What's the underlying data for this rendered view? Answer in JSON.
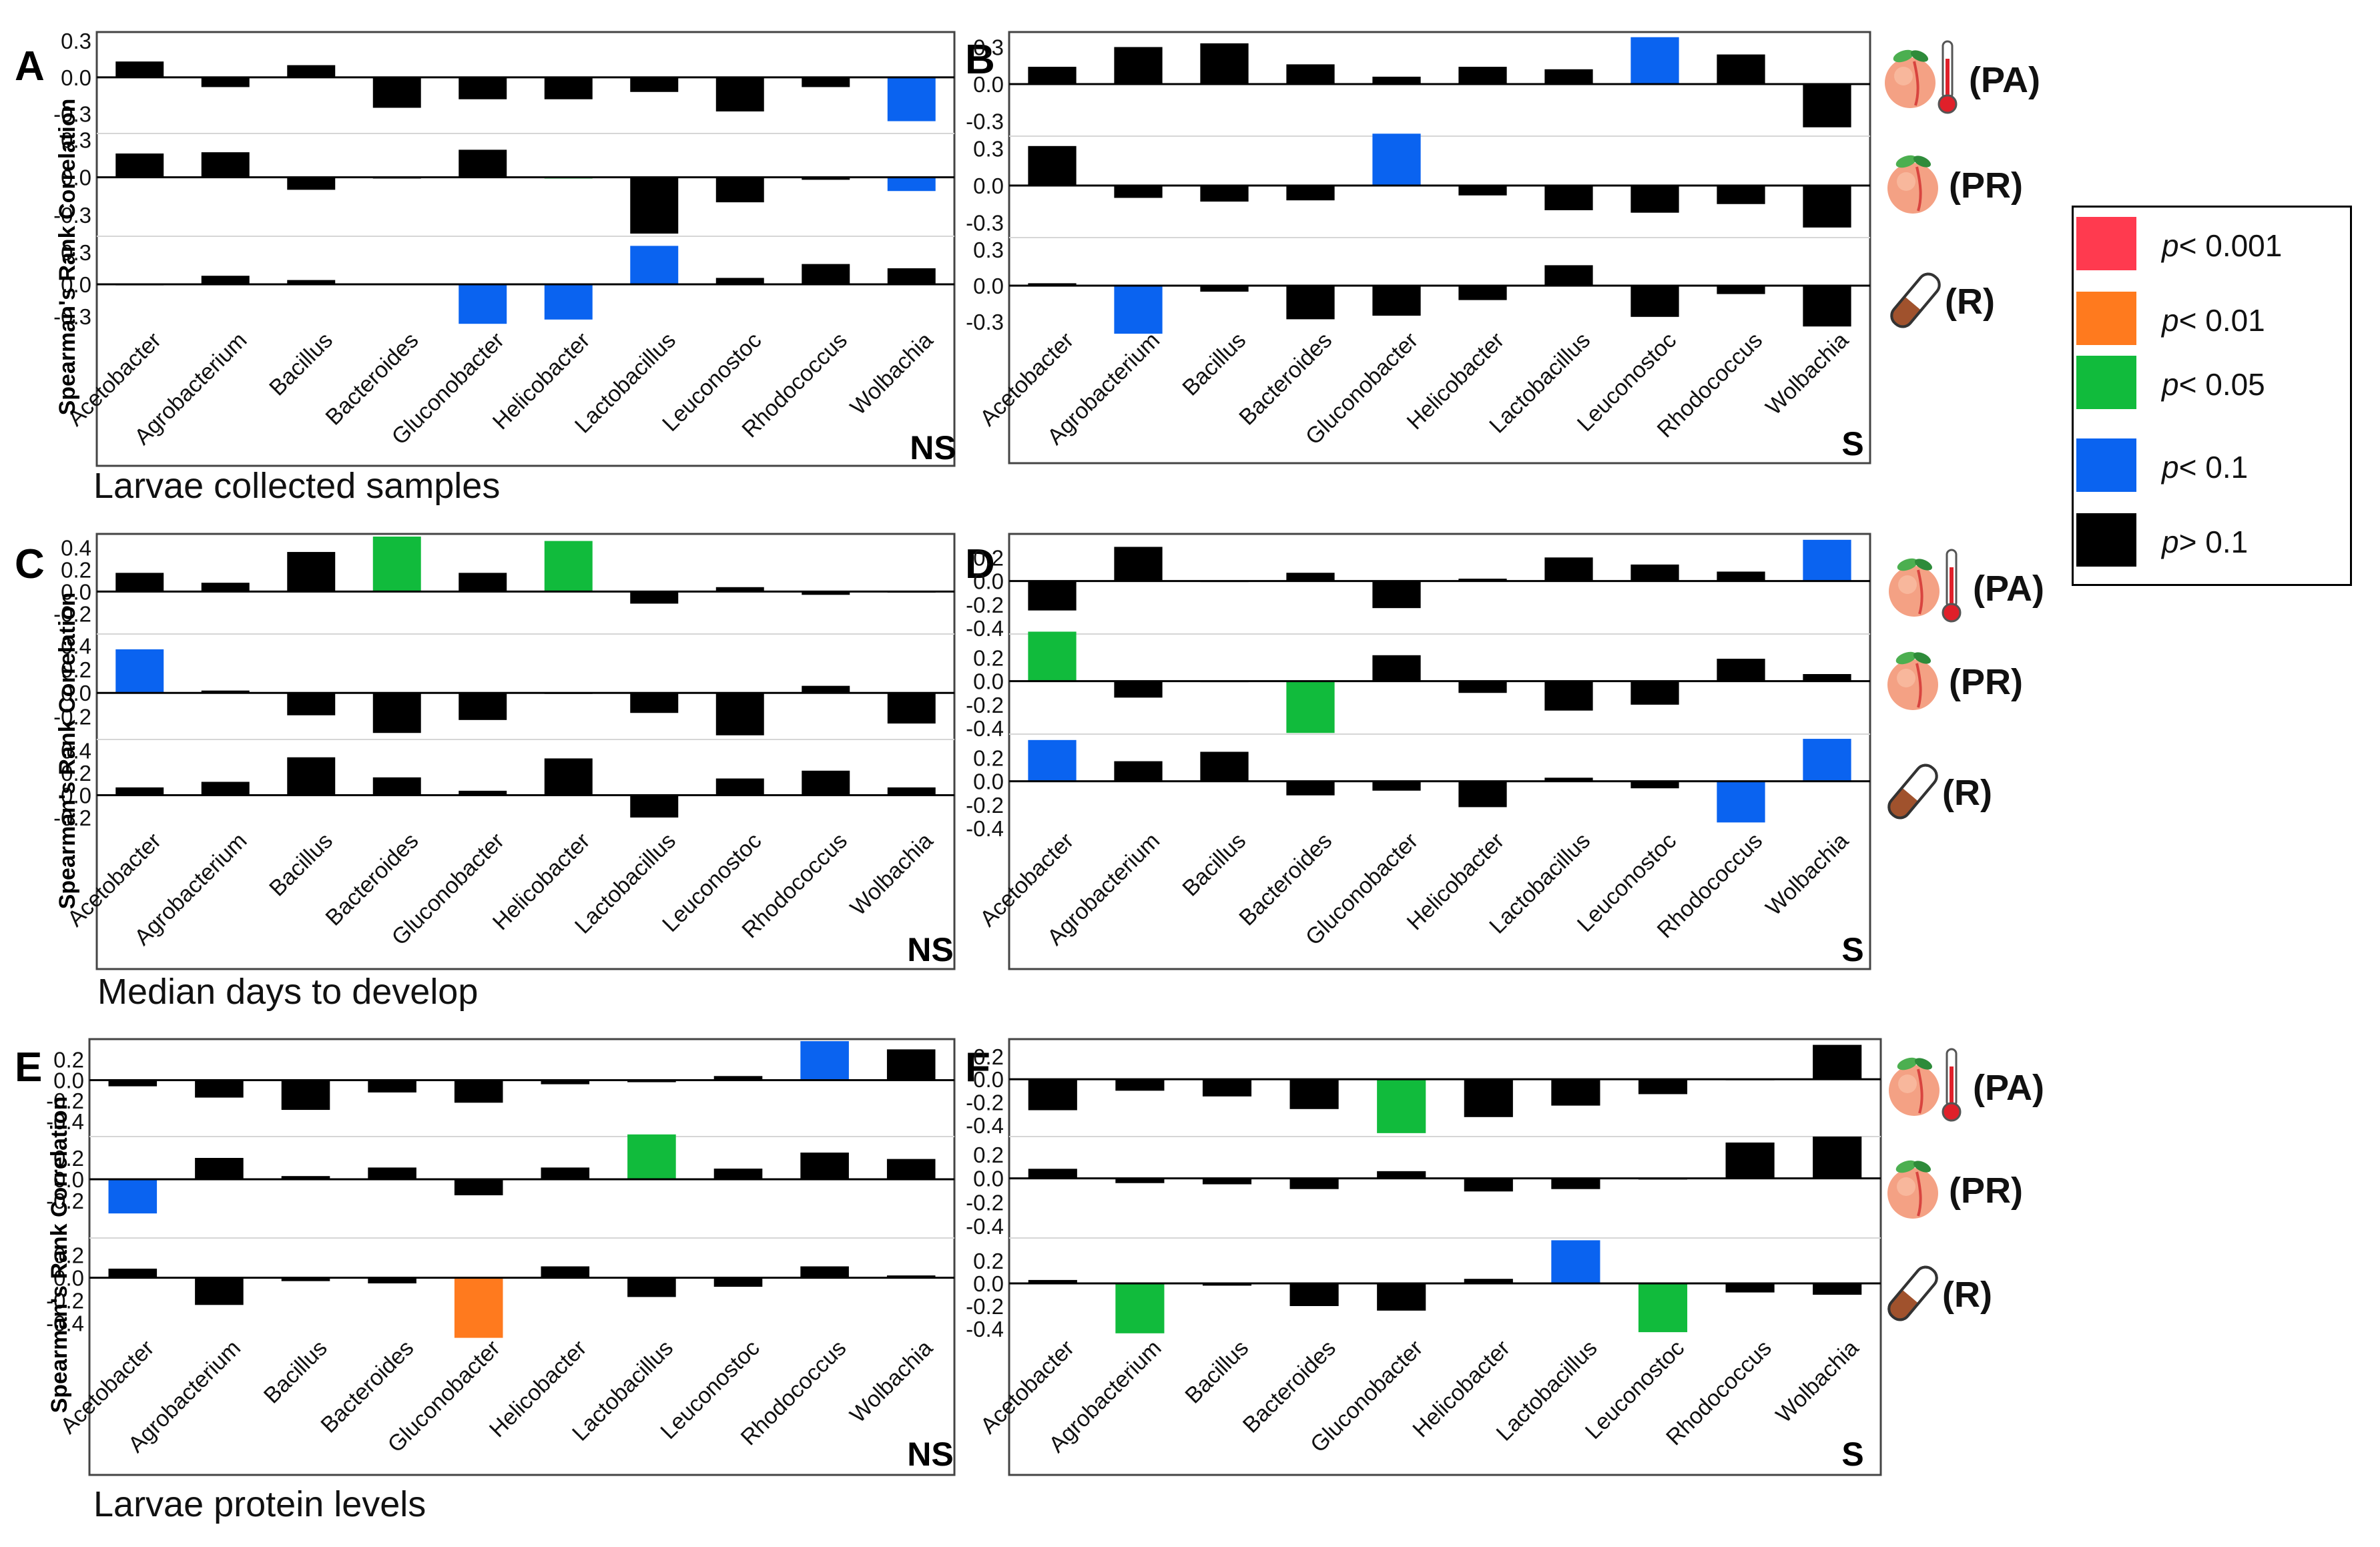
{
  "figure": {
    "ylabel": "Spearman's Rank Correlation",
    "sections": [
      {
        "caption": "Larvae collected samples"
      },
      {
        "caption": "Median days to develop"
      },
      {
        "caption": "Larvae protein levels"
      }
    ],
    "rows": [
      {
        "tag": "(PA)",
        "icon": "peach-thermometer-icon"
      },
      {
        "tag": "(PR)",
        "icon": "peach-icon"
      },
      {
        "tag": "(R)",
        "icon": "test-tube-icon"
      }
    ]
  },
  "legend": {
    "items": [
      {
        "label": "p< 0.001",
        "p": "p",
        "rest": "< 0.001",
        "color": "#ff3a4f"
      },
      {
        "label": "p< 0.01",
        "p": "p",
        "rest": "< 0.01",
        "color": "#ff7a1e"
      },
      {
        "label": "p< 0.05",
        "p": "p",
        "rest": "< 0.05",
        "color": "#11bb3c"
      },
      {
        "label": "p< 0.1",
        "p": "p",
        "rest": "< 0.1",
        "color": "#0a63f0"
      },
      {
        "label": "p> 0.1",
        "p": "p",
        "rest": "> 0.1",
        "color": "#000000"
      }
    ]
  },
  "chart_data": [
    {
      "panel": "A",
      "type": "bar",
      "group": "NS",
      "section": "Larvae collected samples",
      "categories": [
        "Acetobacter",
        "Agrobacterium",
        "Bacillus",
        "Bacteroides",
        "Gluconobacter",
        "Helicobacter",
        "Lactobacillus",
        "Leuconostoc",
        "Rhodococcus",
        "Wolbachia"
      ],
      "subplots": [
        {
          "row": "PA",
          "ylim": [
            -0.45,
            0.35
          ],
          "ticks": [
            "0.3",
            "0.0",
            "-0.3"
          ],
          "tick_values": [
            0.3,
            0.0,
            -0.3
          ],
          "values": [
            0.13,
            -0.08,
            0.1,
            -0.25,
            -0.18,
            -0.18,
            -0.12,
            -0.28,
            -0.08,
            -0.36
          ],
          "significance": [
            "ns",
            "ns",
            "ns",
            "ns",
            "ns",
            "ns",
            "ns",
            "ns",
            "ns",
            "p<0.1"
          ]
        },
        {
          "row": "PR",
          "ylim": [
            -0.45,
            0.35
          ],
          "ticks": [
            "0.3",
            "0.0",
            "-0.3"
          ],
          "tick_values": [
            0.3,
            0.0,
            -0.3
          ],
          "values": [
            0.19,
            0.2,
            -0.1,
            -0.01,
            0.22,
            -0.01,
            -0.45,
            -0.2,
            -0.02,
            -0.11
          ],
          "significance": [
            "ns",
            "ns",
            "ns",
            "ns",
            "ns",
            "p<0.05",
            "ns",
            "ns",
            "ns",
            "p<0.1"
          ]
        },
        {
          "row": "R",
          "ylim": [
            -0.45,
            0.45
          ],
          "ticks": [
            "0.3",
            "0.0",
            "-0.3"
          ],
          "tick_values": [
            0.3,
            0.0,
            -0.3
          ],
          "values": [
            -0.01,
            0.08,
            0.04,
            0.0,
            -0.37,
            -0.33,
            0.36,
            0.06,
            0.19,
            0.15
          ],
          "significance": [
            "ns",
            "ns",
            "ns",
            "ns",
            "p<0.1",
            "p<0.1",
            "p<0.1",
            "ns",
            "ns",
            "ns"
          ]
        }
      ]
    },
    {
      "panel": "B",
      "type": "bar",
      "group": "S",
      "section": "Larvae collected samples",
      "categories": [
        "Acetobacter",
        "Agrobacterium",
        "Bacillus",
        "Bacteroides",
        "Gluconobacter",
        "Helicobacter",
        "Lactobacillus",
        "Leuconostoc",
        "Rhodococcus",
        "Wolbachia"
      ],
      "subplots": [
        {
          "row": "PA",
          "ylim": [
            -0.4,
            0.4
          ],
          "ticks": [
            "0.3",
            "0.0",
            "-0.3"
          ],
          "tick_values": [
            0.3,
            0.0,
            -0.3
          ],
          "values": [
            0.14,
            0.3,
            0.33,
            0.16,
            0.06,
            0.14,
            0.12,
            0.38,
            0.24,
            -0.35
          ],
          "significance": [
            "ns",
            "ns",
            "ns",
            "ns",
            "ns",
            "ns",
            "ns",
            "p<0.1",
            "ns",
            "ns"
          ]
        },
        {
          "row": "PR",
          "ylim": [
            -0.4,
            0.4
          ],
          "ticks": [
            "0.3",
            "0.0",
            "-0.3"
          ],
          "tick_values": [
            0.3,
            0.0,
            -0.3
          ],
          "values": [
            0.32,
            -0.1,
            -0.13,
            -0.12,
            0.42,
            -0.08,
            -0.2,
            -0.22,
            -0.15,
            -0.34
          ],
          "significance": [
            "ns",
            "ns",
            "ns",
            "ns",
            "p<0.1",
            "ns",
            "ns",
            "ns",
            "ns",
            "ns"
          ]
        },
        {
          "row": "R",
          "ylim": [
            -0.4,
            0.4
          ],
          "ticks": [
            "0.3",
            "0.0",
            "-0.3"
          ],
          "tick_values": [
            0.3,
            0.0,
            -0.3
          ],
          "values": [
            0.02,
            -0.4,
            -0.05,
            -0.28,
            -0.25,
            -0.12,
            0.17,
            -0.26,
            -0.07,
            -0.34
          ],
          "significance": [
            "ns",
            "p<0.1",
            "ns",
            "ns",
            "ns",
            "ns",
            "ns",
            "ns",
            "ns",
            "ns"
          ]
        }
      ]
    },
    {
      "panel": "C",
      "type": "bar",
      "group": "NS",
      "section": "Median days to develop",
      "categories": [
        "Acetobacter",
        "Agrobacterium",
        "Bacillus",
        "Bacteroides",
        "Gluconobacter",
        "Helicobacter",
        "Lactobacillus",
        "Leuconostoc",
        "Rhodococcus",
        "Wolbachia"
      ],
      "subplots": [
        {
          "row": "PA",
          "ylim": [
            -0.35,
            0.5
          ],
          "ticks": [
            "0.4",
            "0.2",
            "0.0",
            "-0.2"
          ],
          "tick_values": [
            0.4,
            0.2,
            0.0,
            -0.2
          ],
          "values": [
            0.17,
            0.08,
            0.36,
            0.5,
            0.17,
            0.46,
            -0.11,
            0.04,
            -0.03,
            -0.01
          ],
          "significance": [
            "ns",
            "ns",
            "ns",
            "p<0.05",
            "ns",
            "p<0.05",
            "ns",
            "ns",
            "ns",
            "ns"
          ]
        },
        {
          "row": "PR",
          "ylim": [
            -0.35,
            0.5
          ],
          "ticks": [
            "0.4",
            "0.2",
            "0.0",
            "-0.2"
          ],
          "tick_values": [
            0.4,
            0.2,
            0.0,
            -0.2
          ],
          "values": [
            0.37,
            0.02,
            -0.19,
            -0.34,
            -0.23,
            0.0,
            -0.17,
            -0.36,
            0.06,
            -0.26
          ],
          "significance": [
            "p<0.1",
            "ns",
            "ns",
            "ns",
            "ns",
            "ns",
            "ns",
            "ns",
            "ns",
            "ns"
          ]
        },
        {
          "row": "R",
          "ylim": [
            -0.35,
            0.5
          ],
          "ticks": [
            "0.4",
            "0.2",
            "0.0",
            "-0.2"
          ],
          "tick_values": [
            0.4,
            0.2,
            0.0,
            -0.2
          ],
          "values": [
            0.07,
            0.12,
            0.34,
            0.16,
            0.04,
            0.33,
            -0.2,
            0.15,
            0.22,
            0.07
          ],
          "significance": [
            "ns",
            "ns",
            "ns",
            "ns",
            "ns",
            "ns",
            "ns",
            "ns",
            "ns",
            "ns"
          ]
        }
      ]
    },
    {
      "panel": "D",
      "type": "bar",
      "group": "S",
      "section": "Median days to develop",
      "categories": [
        "Acetobacter",
        "Agrobacterium",
        "Bacillus",
        "Bacteroides",
        "Gluconobacter",
        "Helicobacter",
        "Lactobacillus",
        "Leuconostoc",
        "Rhodococcus",
        "Wolbachia"
      ],
      "subplots": [
        {
          "row": "PA",
          "ylim": [
            -0.45,
            0.4
          ],
          "ticks": [
            "0.2",
            "0.0",
            "-0.2",
            "-0.4"
          ],
          "tick_values": [
            0.2,
            0.0,
            -0.2,
            -0.4
          ],
          "values": [
            -0.25,
            0.29,
            0.0,
            0.07,
            -0.23,
            0.02,
            0.2,
            0.14,
            0.08,
            0.35
          ],
          "significance": [
            "ns",
            "ns",
            "ns",
            "ns",
            "ns",
            "ns",
            "ns",
            "ns",
            "ns",
            "p<0.1"
          ]
        },
        {
          "row": "PR",
          "ylim": [
            -0.45,
            0.4
          ],
          "ticks": [
            "0.2",
            "0.0",
            "-0.2",
            "-0.4"
          ],
          "tick_values": [
            0.2,
            0.0,
            -0.2,
            -0.4
          ],
          "values": [
            0.42,
            -0.14,
            0.0,
            -0.44,
            0.22,
            -0.1,
            -0.25,
            -0.2,
            0.19,
            0.06
          ],
          "significance": [
            "p<0.05",
            "ns",
            "ns",
            "p<0.05",
            "ns",
            "ns",
            "ns",
            "ns",
            "ns",
            "ns"
          ]
        },
        {
          "row": "R",
          "ylim": [
            -0.45,
            0.4
          ],
          "ticks": [
            "0.2",
            "0.0",
            "-0.2",
            "-0.4"
          ],
          "tick_values": [
            0.2,
            0.0,
            -0.2,
            -0.4
          ],
          "values": [
            0.35,
            0.17,
            0.25,
            -0.12,
            -0.08,
            -0.22,
            0.03,
            -0.06,
            -0.35,
            0.36
          ],
          "significance": [
            "p<0.1",
            "ns",
            "ns",
            "ns",
            "ns",
            "ns",
            "ns",
            "ns",
            "p<0.1",
            "p<0.1"
          ]
        }
      ]
    },
    {
      "panel": "E",
      "type": "bar",
      "group": "NS",
      "section": "Larvae protein levels",
      "categories": [
        "Acetobacter",
        "Agrobacterium",
        "Bacillus",
        "Bacteroides",
        "Gluconobacter",
        "Helicobacter",
        "Lactobacillus",
        "Leuconostoc",
        "Rhodococcus",
        "Wolbachia"
      ],
      "subplots": [
        {
          "row": "PA",
          "ylim": [
            -0.55,
            0.4
          ],
          "ticks": [
            "0.2",
            "0.0",
            "-0.2",
            "-0.4"
          ],
          "tick_values": [
            0.2,
            0.0,
            -0.2,
            -0.4
          ],
          "values": [
            -0.06,
            -0.17,
            -0.29,
            -0.12,
            -0.22,
            -0.04,
            -0.02,
            0.04,
            0.38,
            0.3
          ],
          "significance": [
            "ns",
            "ns",
            "ns",
            "ns",
            "ns",
            "ns",
            "ns",
            "ns",
            "p<0.1",
            "ns"
          ]
        },
        {
          "row": "PR",
          "ylim": [
            -0.55,
            0.4
          ],
          "ticks": [
            "0.2",
            "0.0",
            "-0.2"
          ],
          "tick_values": [
            0.2,
            0.0,
            -0.2
          ],
          "values": [
            -0.32,
            0.2,
            0.03,
            0.11,
            -0.15,
            0.11,
            0.42,
            0.1,
            0.25,
            0.19
          ],
          "significance": [
            "p<0.1",
            "ns",
            "ns",
            "ns",
            "ns",
            "ns",
            "p<0.05",
            "ns",
            "ns",
            "ns"
          ]
        },
        {
          "row": "R",
          "ylim": [
            -0.55,
            0.35
          ],
          "ticks": [
            "0.2",
            "0.0",
            "-0.2",
            "-0.4"
          ],
          "tick_values": [
            0.2,
            0.0,
            -0.2,
            -0.4
          ],
          "values": [
            0.08,
            -0.24,
            -0.03,
            -0.05,
            -0.53,
            0.1,
            -0.17,
            -0.08,
            0.1,
            0.02
          ],
          "significance": [
            "ns",
            "ns",
            "ns",
            "ns",
            "p<0.01",
            "ns",
            "ns",
            "ns",
            "ns",
            "ns"
          ]
        }
      ]
    },
    {
      "panel": "F",
      "type": "bar",
      "group": "S",
      "section": "Larvae protein levels",
      "categories": [
        "Acetobacter",
        "Agrobacterium",
        "Bacillus",
        "Bacteroides",
        "Gluconobacter",
        "Helicobacter",
        "Lactobacillus",
        "Leuconostoc",
        "Rhodococcus",
        "Wolbachia"
      ],
      "subplots": [
        {
          "row": "PA",
          "ylim": [
            -0.5,
            0.35
          ],
          "ticks": [
            "0.2",
            "0.0",
            "-0.2",
            "-0.4"
          ],
          "tick_values": [
            0.2,
            0.0,
            -0.2,
            -0.4
          ],
          "values": [
            -0.27,
            -0.1,
            -0.15,
            -0.26,
            -0.47,
            -0.33,
            -0.23,
            -0.13,
            0.0,
            0.3
          ],
          "significance": [
            "ns",
            "ns",
            "ns",
            "ns",
            "p<0.05",
            "ns",
            "ns",
            "ns",
            "ns",
            "ns"
          ]
        },
        {
          "row": "PR",
          "ylim": [
            -0.5,
            0.35
          ],
          "ticks": [
            "0.2",
            "0.0",
            "-0.2",
            "-0.4"
          ],
          "tick_values": [
            0.2,
            0.0,
            -0.2,
            -0.4
          ],
          "values": [
            0.08,
            -0.04,
            -0.05,
            -0.09,
            0.06,
            -0.11,
            -0.09,
            -0.01,
            0.3,
            0.35
          ],
          "significance": [
            "ns",
            "ns",
            "ns",
            "ns",
            "ns",
            "ns",
            "ns",
            "ns",
            "ns",
            "ns"
          ]
        },
        {
          "row": "R",
          "ylim": [
            -0.5,
            0.4
          ],
          "ticks": [
            "0.2",
            "0.0",
            "-0.2",
            "-0.4"
          ],
          "tick_values": [
            0.2,
            0.0,
            -0.2,
            -0.4
          ],
          "values": [
            0.03,
            -0.44,
            -0.02,
            -0.2,
            -0.24,
            0.04,
            0.38,
            -0.43,
            -0.08,
            -0.1
          ],
          "significance": [
            "ns",
            "p<0.05",
            "ns",
            "ns",
            "ns",
            "ns",
            "p<0.1",
            "p<0.05",
            "ns",
            "ns"
          ]
        }
      ]
    }
  ]
}
